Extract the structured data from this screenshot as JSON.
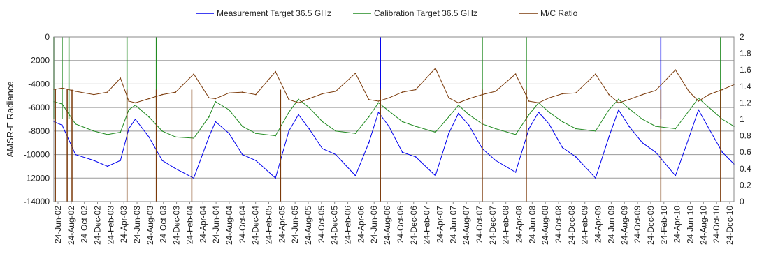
{
  "chart_data": {
    "type": "line",
    "ylabel": "AMSR-E Radiance",
    "left_axis": {
      "range": [
        -14000,
        0
      ],
      "ticks": [
        "0",
        "-2000",
        "-4000",
        "-6000",
        "-8000",
        "-10000",
        "-12000",
        "-14000"
      ]
    },
    "right_axis": {
      "range": [
        0,
        2
      ],
      "ticks": [
        "2",
        "1.8",
        "1.6",
        "1.4",
        "1.2",
        "1",
        "0.8",
        "0.6",
        "0.4",
        "0.2",
        "0"
      ]
    },
    "grid": "horizontal",
    "legend": "top",
    "x_range": [
      "24-Jun-02",
      "24-Dec-10"
    ],
    "x_tick_labels": [
      "24-Jun-02",
      "24-Aug-02",
      "24-Oct-02",
      "24-Dec-02",
      "24-Feb-03",
      "24-Apr-03",
      "24-Jun-03",
      "24-Aug-03",
      "24-Oct-03",
      "24-Dec-03",
      "24-Feb-04",
      "24-Apr-04",
      "24-Jun-04",
      "24-Aug-04",
      "24-Oct-04",
      "24-Dec-04",
      "24-Feb-05",
      "24-Apr-05",
      "24-Jun-05",
      "24-Aug-05",
      "24-Oct-05",
      "24-Dec-05",
      "24-Feb-06",
      "24-Apr-06",
      "24-Jun-06",
      "24-Aug-06",
      "24-Oct-06",
      "24-Dec-06",
      "24-Feb-07",
      "24-Apr-07",
      "24-Jun-07",
      "24-Aug-07",
      "24-Oct-07",
      "24-Dec-07",
      "24-Feb-08",
      "24-Apr-08",
      "24-Jun-08",
      "24-Aug-08",
      "24-Oct-08",
      "24-Dec-08",
      "24-Feb-09",
      "24-Apr-09",
      "24-Jun-09",
      "24-Aug-09",
      "24-Oct-09",
      "24-Dec-09",
      "24-Feb-10",
      "24-Apr-10",
      "24-Jun-10",
      "24-Aug-10",
      "24-Oct-10",
      "24-Dec-10"
    ],
    "series": [
      {
        "name": "Measurement Target 36.5 GHz",
        "axis": "left",
        "color": "#0000ee",
        "x": [
          "2002-06-24",
          "2002-08-01",
          "2002-10-01",
          "2002-12-24",
          "2003-02-24",
          "2003-04-24",
          "2003-06-01",
          "2003-07-01",
          "2003-09-01",
          "2003-11-01",
          "2004-01-01",
          "2004-03-24",
          "2004-06-01",
          "2004-07-01",
          "2004-09-01",
          "2004-11-01",
          "2005-01-01",
          "2005-04-01",
          "2005-06-01",
          "2005-07-15",
          "2005-09-01",
          "2005-11-01",
          "2006-01-01",
          "2006-04-01",
          "2006-06-01",
          "2006-07-15",
          "2006-09-01",
          "2006-11-01",
          "2007-01-01",
          "2007-04-01",
          "2007-06-01",
          "2007-07-15",
          "2007-09-01",
          "2007-11-01",
          "2008-01-01",
          "2008-04-01",
          "2008-06-01",
          "2008-07-15",
          "2008-09-01",
          "2008-11-01",
          "2009-01-01",
          "2009-04-01",
          "2009-06-01",
          "2009-07-15",
          "2009-09-01",
          "2009-11-01",
          "2010-01-01",
          "2010-04-01",
          "2010-06-01",
          "2010-07-15",
          "2010-09-01",
          "2010-11-01",
          "2010-12-24"
        ],
        "values": [
          -7200,
          -7500,
          -10000,
          -10500,
          -11000,
          -10500,
          -7800,
          -7000,
          -8500,
          -10500,
          -11200,
          -12000,
          -8500,
          -7200,
          -8200,
          -10000,
          -10500,
          -12000,
          -8000,
          -6600,
          -7800,
          -9500,
          -10000,
          -11800,
          -9000,
          -6400,
          -7600,
          -9800,
          -10200,
          -11800,
          -8200,
          -6500,
          -7500,
          -9500,
          -10500,
          -11500,
          -7800,
          -6400,
          -7400,
          -9400,
          -10200,
          -12000,
          -8500,
          -6200,
          -7600,
          -9000,
          -9800,
          -11800,
          -8600,
          -6200,
          -7800,
          -9800,
          -10800
        ],
        "spikes": [
          {
            "x": "2006-07-24",
            "value": 0
          },
          {
            "x": "2010-01-24",
            "value": 0
          }
        ]
      },
      {
        "name": "Calibration Target 36.5 GHz",
        "axis": "left",
        "color": "#228b22",
        "x": [
          "2002-06-24",
          "2002-08-01",
          "2002-10-01",
          "2002-12-24",
          "2003-02-24",
          "2003-04-24",
          "2003-06-01",
          "2003-07-01",
          "2003-09-01",
          "2003-11-01",
          "2004-01-01",
          "2004-03-24",
          "2004-06-01",
          "2004-07-01",
          "2004-09-01",
          "2004-11-01",
          "2005-01-01",
          "2005-04-01",
          "2005-06-01",
          "2005-07-15",
          "2005-09-01",
          "2005-11-01",
          "2006-01-01",
          "2006-04-01",
          "2006-06-01",
          "2006-07-15",
          "2006-09-01",
          "2006-11-01",
          "2007-01-01",
          "2007-04-01",
          "2007-06-01",
          "2007-07-15",
          "2007-09-01",
          "2007-11-01",
          "2008-01-01",
          "2008-04-01",
          "2008-06-01",
          "2008-07-15",
          "2008-09-01",
          "2008-11-01",
          "2009-01-01",
          "2009-04-01",
          "2009-06-01",
          "2009-07-15",
          "2009-09-01",
          "2009-11-01",
          "2010-01-01",
          "2010-04-01",
          "2010-06-01",
          "2010-07-15",
          "2010-09-01",
          "2010-11-01",
          "2010-12-24"
        ],
        "values": [
          -5500,
          -5700,
          -7400,
          -8000,
          -8300,
          -8100,
          -6200,
          -5800,
          -6800,
          -8000,
          -8500,
          -8600,
          -6800,
          -5500,
          -6200,
          -7600,
          -8200,
          -8400,
          -6400,
          -5300,
          -6000,
          -7200,
          -8000,
          -8200,
          -6800,
          -5600,
          -6300,
          -7200,
          -7600,
          -8100,
          -6800,
          -5800,
          -6600,
          -7400,
          -7800,
          -8300,
          -6600,
          -5600,
          -6400,
          -7200,
          -7800,
          -8000,
          -6200,
          -5300,
          -6100,
          -7000,
          -7600,
          -7800,
          -6300,
          -5200,
          -6000,
          -7000,
          -7600
        ],
        "spikes": [
          {
            "x": "2002-06-24",
            "value": 0
          },
          {
            "x": "2002-08-01",
            "value": 0
          },
          {
            "x": "2002-09-01",
            "value": 0
          },
          {
            "x": "2003-05-24",
            "value": 0
          },
          {
            "x": "2003-10-05",
            "value": 0
          },
          {
            "x": "2007-11-01",
            "value": 0
          },
          {
            "x": "2008-05-20",
            "value": 0
          },
          {
            "x": "2010-10-24",
            "value": 0
          }
        ]
      },
      {
        "name": "M/C Ratio",
        "axis": "right",
        "color": "#7b3a0a",
        "x": [
          "2002-06-24",
          "2002-08-01",
          "2002-10-01",
          "2002-12-24",
          "2003-02-24",
          "2003-04-24",
          "2003-06-01",
          "2003-07-01",
          "2003-09-01",
          "2003-11-01",
          "2004-01-01",
          "2004-03-24",
          "2004-06-01",
          "2004-07-01",
          "2004-09-01",
          "2004-11-01",
          "2005-01-01",
          "2005-04-01",
          "2005-06-01",
          "2005-07-15",
          "2005-09-01",
          "2005-11-01",
          "2006-01-01",
          "2006-04-01",
          "2006-06-01",
          "2006-07-15",
          "2006-09-01",
          "2006-11-01",
          "2007-01-01",
          "2007-04-01",
          "2007-06-01",
          "2007-07-15",
          "2007-09-01",
          "2007-11-01",
          "2008-01-01",
          "2008-04-01",
          "2008-06-01",
          "2008-07-15",
          "2008-09-01",
          "2008-11-01",
          "2009-01-01",
          "2009-04-01",
          "2009-06-01",
          "2009-07-15",
          "2009-09-01",
          "2009-11-01",
          "2010-01-01",
          "2010-04-01",
          "2010-06-01",
          "2010-07-15",
          "2010-09-01",
          "2010-11-01",
          "2010-12-24"
        ],
        "values": [
          1.36,
          1.38,
          1.34,
          1.3,
          1.33,
          1.5,
          1.22,
          1.2,
          1.25,
          1.3,
          1.33,
          1.55,
          1.26,
          1.25,
          1.32,
          1.33,
          1.3,
          1.58,
          1.24,
          1.2,
          1.25,
          1.31,
          1.34,
          1.56,
          1.24,
          1.22,
          1.26,
          1.33,
          1.36,
          1.62,
          1.26,
          1.2,
          1.25,
          1.3,
          1.34,
          1.55,
          1.22,
          1.2,
          1.26,
          1.31,
          1.32,
          1.55,
          1.3,
          1.2,
          1.24,
          1.3,
          1.35,
          1.6,
          1.34,
          1.22,
          1.3,
          1.36,
          1.42
        ],
        "spikes": [
          {
            "x": "2002-07-01",
            "value": 0
          },
          {
            "x": "2002-08-24",
            "value": 0
          },
          {
            "x": "2002-09-15",
            "value": 0
          },
          {
            "x": "2003-05-24",
            "value": 0
          },
          {
            "x": "2003-10-05",
            "value": 0
          },
          {
            "x": "2004-03-15",
            "value": 0
          },
          {
            "x": "2005-04-24",
            "value": 0
          },
          {
            "x": "2006-07-24",
            "value": 0
          },
          {
            "x": "2007-11-01",
            "value": 0
          },
          {
            "x": "2008-05-20",
            "value": 0
          },
          {
            "x": "2010-01-24",
            "value": 0
          },
          {
            "x": "2010-10-24",
            "value": 0
          }
        ]
      }
    ]
  }
}
